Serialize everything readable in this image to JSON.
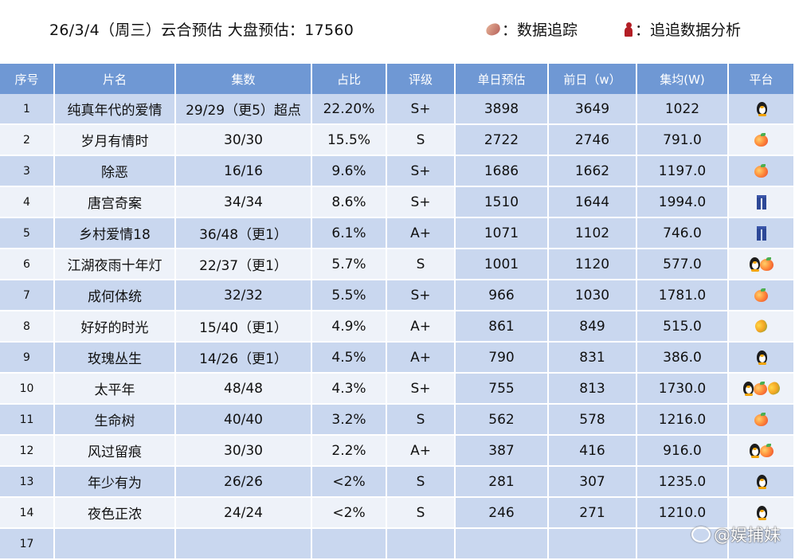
{
  "header": {
    "title": "26/3/4（周三）云合预估  大盘预估：17560",
    "legend_tracking": "：数据追踪",
    "legend_analysis": "：追追数据分析"
  },
  "table": {
    "columns": [
      "序号",
      "片名",
      "集数",
      "占比",
      "评级",
      "单日预估",
      "前日（w）",
      "集均(W)",
      "平台"
    ],
    "rows": [
      {
        "idx": "1",
        "name": "纯真年代的爱情",
        "eps": "29/29（更5）超点",
        "share": "22.20%",
        "rating": "S+",
        "daily": "3898",
        "prev": "3649",
        "avg": "1022",
        "platforms": [
          "penguin"
        ]
      },
      {
        "idx": "2",
        "name": "岁月有情时",
        "eps": "30/30",
        "share": "15.5%",
        "rating": "S",
        "daily": "2722",
        "prev": "2746",
        "avg": "791.0",
        "platforms": [
          "peach"
        ]
      },
      {
        "idx": "3",
        "name": "除恶",
        "eps": "16/16",
        "share": "9.6%",
        "rating": "S+",
        "daily": "1686",
        "prev": "1662",
        "avg": "1197.0",
        "platforms": [
          "peach"
        ]
      },
      {
        "idx": "4",
        "name": "唐宫奇案",
        "eps": "34/34",
        "share": "8.6%",
        "rating": "S+",
        "daily": "1510",
        "prev": "1644",
        "avg": "1994.0",
        "platforms": [
          "pants"
        ]
      },
      {
        "idx": "5",
        "name": "乡村爱情18",
        "eps": "36/48（更1）",
        "share": "6.1%",
        "rating": "A+",
        "daily": "1071",
        "prev": "1102",
        "avg": "746.0",
        "platforms": [
          "pants"
        ]
      },
      {
        "idx": "6",
        "name": "江湖夜雨十年灯",
        "eps": "22/37（更1）",
        "share": "5.7%",
        "rating": "S",
        "daily": "1001",
        "prev": "1120",
        "avg": "577.0",
        "platforms": [
          "penguin",
          "peach"
        ]
      },
      {
        "idx": "7",
        "name": "成何体统",
        "eps": "32/32",
        "share": "5.5%",
        "rating": "S+",
        "daily": "966",
        "prev": "1030",
        "avg": "1781.0",
        "platforms": [
          "peach"
        ]
      },
      {
        "idx": "8",
        "name": "好好的时光",
        "eps": "15/40（更1）",
        "share": "4.9%",
        "rating": "A+",
        "daily": "861",
        "prev": "849",
        "avg": "515.0",
        "platforms": [
          "mango"
        ]
      },
      {
        "idx": "9",
        "name": "玫瑰丛生",
        "eps": "14/26（更1）",
        "share": "4.5%",
        "rating": "A+",
        "daily": "790",
        "prev": "831",
        "avg": "386.0",
        "platforms": [
          "penguin"
        ]
      },
      {
        "idx": "10",
        "name": "太平年",
        "eps": "48/48",
        "share": "4.3%",
        "rating": "S+",
        "daily": "755",
        "prev": "813",
        "avg": "1730.0",
        "platforms": [
          "penguin",
          "peach",
          "mango"
        ]
      },
      {
        "idx": "11",
        "name": "生命树",
        "eps": "40/40",
        "share": "3.2%",
        "rating": "S",
        "daily": "562",
        "prev": "578",
        "avg": "1216.0",
        "platforms": [
          "peach"
        ]
      },
      {
        "idx": "12",
        "name": "风过留痕",
        "eps": "30/30",
        "share": "2.2%",
        "rating": "A+",
        "daily": "387",
        "prev": "416",
        "avg": "916.0",
        "platforms": [
          "penguin",
          "peach"
        ]
      },
      {
        "idx": "13",
        "name": "年少有为",
        "eps": "26/26",
        "share": "<2%",
        "rating": "S",
        "daily": "281",
        "prev": "307",
        "avg": "1235.0",
        "platforms": [
          "penguin"
        ]
      },
      {
        "idx": "14",
        "name": "夜色正浓",
        "eps": "24/24",
        "share": "<2%",
        "rating": "S",
        "daily": "246",
        "prev": "271",
        "avg": "1210.0",
        "platforms": [
          "penguin"
        ]
      },
      {
        "idx": "17",
        "name": "",
        "eps": "",
        "share": "",
        "rating": "",
        "daily": "",
        "prev": "",
        "avg": "",
        "platforms": []
      }
    ]
  },
  "colors": {
    "header_bg": "#6f98d4",
    "row_dark": "#c9d7ef",
    "row_light": "#eef2f9"
  },
  "watermark": "@娱捕妹"
}
